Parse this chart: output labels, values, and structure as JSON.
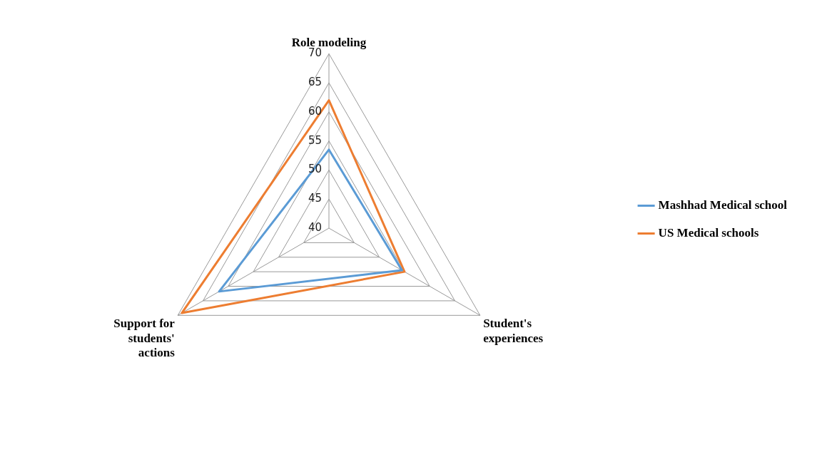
{
  "chart_data": {
    "type": "radar",
    "categories": [
      "Role modeling",
      "Student's experiences",
      "Support for students' actions"
    ],
    "series": [
      {
        "name": "Mashhad Medical school",
        "color": "#5b9bd5",
        "values": [
          53.5,
          54.5,
          61.8
        ]
      },
      {
        "name": "US Medical schools",
        "color": "#ed7d31",
        "values": [
          62,
          55,
          69.2
        ]
      }
    ],
    "ylim": [
      40,
      70
    ],
    "yticks": [
      40,
      45,
      50,
      55,
      60,
      65,
      70
    ],
    "legend": "right",
    "grid": true
  }
}
